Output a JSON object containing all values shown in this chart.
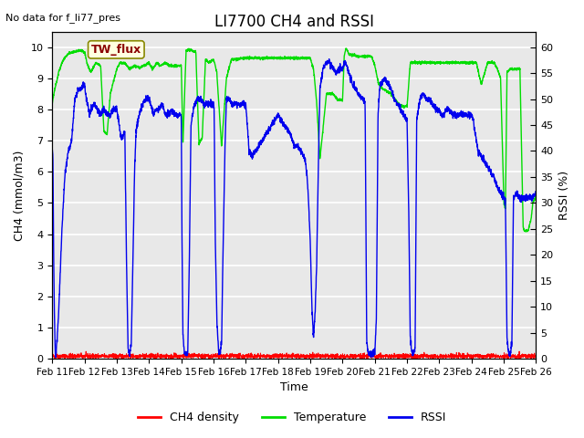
{
  "title": "LI7700 CH4 and RSSI",
  "top_left_text": "No data for f_li77_pres",
  "annotation_text": "TW_flux",
  "ylabel_left": "CH4 (mmol/m3)",
  "ylabel_right": "RSSI (%)",
  "xlabel": "Time",
  "ylim_left": [
    0.0,
    10.5
  ],
  "ylim_right": [
    0,
    63
  ],
  "yticks_left": [
    0.0,
    1.0,
    2.0,
    3.0,
    4.0,
    5.0,
    6.0,
    7.0,
    8.0,
    9.0,
    10.0
  ],
  "yticks_right": [
    0,
    5,
    10,
    15,
    20,
    25,
    30,
    35,
    40,
    45,
    50,
    55,
    60
  ],
  "xtick_labels": [
    "Feb 11",
    "Feb 12",
    "Feb 13",
    "Feb 14",
    "Feb 15",
    "Feb 16",
    "Feb 17",
    "Feb 18",
    "Feb 19",
    "Feb 20",
    "Feb 21",
    "Feb 22",
    "Feb 23",
    "Feb 24",
    "Feb 25",
    "Feb 26"
  ],
  "legend_labels": [
    "CH4 density",
    "Temperature",
    "RSSI"
  ],
  "legend_colors": [
    "#ff0000",
    "#00dd00",
    "#0000ee"
  ],
  "bg_color": "#e8e8e8",
  "grid_color": "#ffffff",
  "line_color_ch4": "#ff0000",
  "line_color_temp": "#00dd00",
  "line_color_rssi": "#0000ee"
}
